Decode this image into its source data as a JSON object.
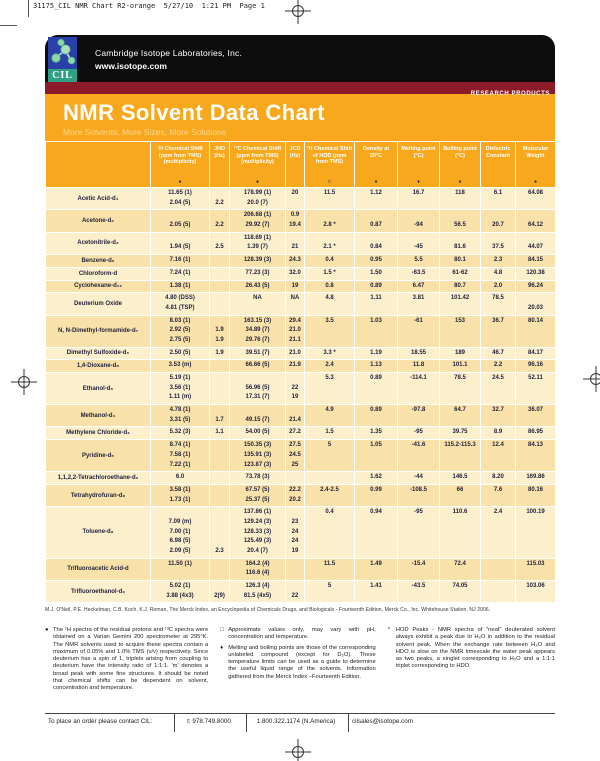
{
  "slug": "31175_CIL NMR Chart R2-orange  5/27/10  1:21 PM  Page 1",
  "brand": {
    "logo_text": "CIL",
    "company": "Cambridge Isotope Laboratories, Inc.",
    "website": "www.isotope.com",
    "banner_right": "RESEARCH PRODUCTS"
  },
  "title": {
    "main": "NMR Solvent Data Chart",
    "subtitle": "More Solvents, More Sizes, More Solutions"
  },
  "table": {
    "columns": [
      {
        "label": "",
        "mark": ""
      },
      {
        "label": "¹H Chemical Shift (ppm from TMS) (multiplicity)",
        "mark": "●"
      },
      {
        "label": "JHD (Hz)",
        "mark": ""
      },
      {
        "label": "¹³C Chemical Shift (ppm from TMS) (multiplicity)",
        "mark": "●"
      },
      {
        "label": "JCD (Hz)",
        "mark": ""
      },
      {
        "label": "¹H Chemical Shift of HOD (ppm from TMS)",
        "mark": "□"
      },
      {
        "label": "Density at 20°C",
        "mark": "♦"
      },
      {
        "label": "Melting point (°C)",
        "mark": "♦"
      },
      {
        "label": "Boiling point (°C)",
        "mark": "♦"
      },
      {
        "label": "Dielectric Constant",
        "mark": ""
      },
      {
        "label": "Molecular Weight",
        "mark": "●"
      }
    ],
    "groups": [
      {
        "name": "Acetic Acid-d₄",
        "lines": [
          [
            "11.65 (1)",
            "",
            "178.99 (1)",
            "20",
            "11.5",
            "1.12",
            "16.7",
            "118",
            "6.1",
            "64.08"
          ],
          [
            "2.04 (5)",
            "2.2",
            "20.0 (7)",
            "",
            "",
            "",
            "",
            "",
            "",
            ""
          ]
        ]
      },
      {
        "name": "Acetone-d₆",
        "lines": [
          [
            "",
            "",
            "206.68 (1)",
            "0.9",
            "",
            "",
            "",
            "",
            "",
            ""
          ],
          [
            "2.05 (5)",
            "2.2",
            "29.92 (7)",
            "19.4",
            "2.8 *",
            "0.87",
            "-94",
            "56.5",
            "20.7",
            "64.12"
          ]
        ]
      },
      {
        "name": "Acetonitrile-d₃",
        "lines": [
          [
            "",
            "",
            "118.69 (1)",
            "",
            "",
            "",
            "",
            "",
            "",
            ""
          ],
          [
            "1.94 (5)",
            "2.5",
            "1.39 (7)",
            "21",
            "2.1 *",
            "0.84",
            "-45",
            "81.6",
            "37.5",
            "44.07"
          ]
        ]
      },
      {
        "name": "Benzene-d₆",
        "lines": [
          [
            "7.16 (1)",
            "",
            "128.39 (3)",
            "24.3",
            "0.4",
            "0.95",
            "5.5",
            "80.1",
            "2.3",
            "84.15"
          ]
        ]
      },
      {
        "name": "Chloroform-d",
        "lines": [
          [
            "7.24 (1)",
            "",
            "77.23 (3)",
            "32.0",
            "1.5 *",
            "1.50",
            "-63.5",
            "61-62",
            "4.8",
            "120.38"
          ]
        ]
      },
      {
        "name": "Cyclohexane-d₁₂",
        "lines": [
          [
            "1.38 (1)",
            "",
            "26.43 (5)",
            "19",
            "0.8",
            "0.89",
            "6.47",
            "80.7",
            "2.0",
            "96.24"
          ]
        ]
      },
      {
        "name": "Deuterium Oxide",
        "lines": [
          [
            "4.80 (DSS)",
            "",
            "NA",
            "NA",
            "4.8",
            "1.11",
            "3.81",
            "101.42",
            "78.5",
            ""
          ],
          [
            "4.81 (TSP)",
            "",
            "",
            "",
            "",
            "",
            "",
            "",
            "",
            "20.03"
          ]
        ]
      },
      {
        "name": "N, N-Dimethyl-formamide-d₇",
        "lines": [
          [
            "8.03 (1)",
            "",
            "163.15 (3)",
            "29.4",
            "3.5",
            "1.03",
            "-61",
            "153",
            "36.7",
            "80.14"
          ],
          [
            "2.92 (5)",
            "1.9",
            "34.89 (7)",
            "21.0",
            "",
            "",
            "",
            "",
            "",
            ""
          ],
          [
            "2.75 (5)",
            "1.9",
            "29.76 (7)",
            "21.1",
            "",
            "",
            "",
            "",
            "",
            ""
          ]
        ]
      },
      {
        "name": "Dimethyl Sulfoxide-d₆",
        "lines": [
          [
            "2.50 (5)",
            "1.9",
            "39.51 (7)",
            "21.0",
            "3.3 *",
            "1.19",
            "18.55",
            "189",
            "46.7",
            "84.17"
          ]
        ]
      },
      {
        "name": "1,4-Dioxane-d₈",
        "lines": [
          [
            "3.53 (m)",
            "",
            "66.66 (5)",
            "21.9",
            "2.4",
            "1.13",
            "11.8",
            "101.1",
            "2.2",
            "96.16"
          ]
        ]
      },
      {
        "name": "Ethanol-d₆",
        "lines": [
          [
            "5.19 (1)",
            "",
            "",
            "",
            "5.3",
            "0.89",
            "-114.1",
            "78.5",
            "24.5",
            "52.11"
          ],
          [
            "3.56 (1)",
            "",
            "56.96 (5)",
            "22",
            "",
            "",
            "",
            "",
            "",
            ""
          ],
          [
            "1.11 (m)",
            "",
            "17.31 (7)",
            "19",
            "",
            "",
            "",
            "",
            "",
            ""
          ]
        ]
      },
      {
        "name": "Methanol-d₄",
        "lines": [
          [
            "4.78 (1)",
            "",
            "",
            "",
            "4.9",
            "0.89",
            "-97.8",
            "64.7",
            "32.7",
            "36.07"
          ],
          [
            "3.31 (5)",
            "1.7",
            "49.15 (7)",
            "21.4",
            "",
            "",
            "",
            "",
            "",
            ""
          ]
        ]
      },
      {
        "name": "Methylene Chloride-d₂",
        "lines": [
          [
            "5.32 (3)",
            "1.1",
            "54.00 (5)",
            "27.2",
            "1.5",
            "1.35",
            "-95",
            "39.75",
            "8.9",
            "86.95"
          ]
        ]
      },
      {
        "name": "Pyridine-d₅",
        "lines": [
          [
            "8.74 (1)",
            "",
            "150.35 (3)",
            "27.5",
            "5",
            "1.05",
            "-41.6",
            "115.2-115.3",
            "12.4",
            "84.13"
          ],
          [
            "7.58 (1)",
            "",
            "135.91 (3)",
            "24.5",
            "",
            "",
            "",
            "",
            "",
            ""
          ],
          [
            "7.22 (1)",
            "",
            "123.87 (3)",
            "25",
            "",
            "",
            "",
            "",
            "",
            ""
          ]
        ]
      },
      {
        "name": "1,1,2,2-Tetrachloroethane-d₂",
        "lines": [
          [
            "6.0",
            "",
            "73.78 (3)",
            "",
            "",
            "1.62",
            "-44",
            "146.5",
            "8.20",
            "169.86"
          ]
        ]
      },
      {
        "name": "Tetrahydrofuran-d₈",
        "lines": [
          [
            "3.58 (1)",
            "",
            "67.57 (5)",
            "22.2",
            "2.4-2.5",
            "0.99",
            "-108.5",
            "66",
            "7.6",
            "80.16"
          ],
          [
            "1.73 (1)",
            "",
            "25.37 (5)",
            "20.2",
            "",
            "",
            "",
            "",
            "",
            ""
          ]
        ]
      },
      {
        "name": "Toluene-d₈",
        "lines": [
          [
            "",
            "",
            "137.86 (1)",
            "",
            "0.4",
            "0.94",
            "-95",
            "110.6",
            "2.4",
            "100.19"
          ],
          [
            "7.09 (m)",
            "",
            "129.24 (3)",
            "23",
            "",
            "",
            "",
            "",
            "",
            ""
          ],
          [
            "7.00 (1)",
            "",
            "128.33 (3)",
            "24",
            "",
            "",
            "",
            "",
            "",
            ""
          ],
          [
            "6.98 (5)",
            "",
            "125.49 (3)",
            "24",
            "",
            "",
            "",
            "",
            "",
            ""
          ],
          [
            "2.09 (5)",
            "2.3",
            "20.4 (7)",
            "19",
            "",
            "",
            "",
            "",
            "",
            ""
          ]
        ]
      },
      {
        "name": "Trifluoroacetic Acid-d",
        "lines": [
          [
            "11.50 (1)",
            "",
            "164.2 (4)",
            "",
            "11.5",
            "1.49",
            "-15.4",
            "72.4",
            "",
            "115.03"
          ],
          [
            "",
            "",
            "116.6 (4)",
            "",
            "",
            "",
            "",
            "",
            "",
            ""
          ]
        ]
      },
      {
        "name": "Trifluoroethanol-d₃",
        "lines": [
          [
            "5.02 (1)",
            "",
            "126.3 (4)",
            "",
            "5",
            "1.41",
            "-43.5",
            "74.05",
            "",
            "103.06"
          ],
          [
            "3.88 (4x3)",
            "2(9)",
            "61.5 (4x5)",
            "22",
            "",
            "",
            "",
            "",
            "",
            ""
          ]
        ]
      }
    ]
  },
  "reference": "M.J. O'Neil, P.E. Heckelman, C.B. Koch, K.J. Roman, The Merck Index, an Encyclopedia of Chemicals Drugs, and Biologicals - Fourteenth Edition, Merck Co., Inc. Whitehouse Station, NJ 2006.",
  "notes": [
    {
      "mark": "●",
      "text": "The ¹H spectra of the residual protons and ¹³C spectra were obtained on a Varian Gemini 200 spectrometer at 295°K. The NMR solvents used to acquire these spectra contain a maximum of 0.05% and 1.0% TMS (v/v) respectively. Since deuterium has a spin of 1, triplets arising from coupling to deuterium have the intensity ratio of 1:1:1. 'm' denotes a broad peak with some fine structures. It should be noted that chemical shifts can be dependent on solvent, concentration and temperature."
    },
    {
      "mark": "□",
      "text": "Approximate values only, may vary with pH, concentration and temperature."
    },
    {
      "mark": "♦",
      "text": "Melting and boiling points are those of the corresponding unlabeled compound (except for D₂O). These temperature limits can be used as a guide to determine the useful liquid range of the solvents. Information gathered from the Merck Index –Fourteenth Edition."
    },
    {
      "mark": "*",
      "text": "HOD Peaks - NMR spectra of \"neat\" deuterated solvent always exhibit a peak due to H₂O in addition to the residual solvent peak. When the exchange rate between H₂O and HDO is slow on the NMR timescale the water peak appears as two peaks, a singlet corresponding to H₂O and a 1:1:1 triplet corresponding to HDO."
    }
  ],
  "contact": {
    "items": [
      "To place an order please contact CIL:",
      "t: 978.749.8000",
      "1.800.322.1174 (N.America)",
      "cilsales@isotope.com"
    ]
  },
  "colors": {
    "orange": "#f7a81c",
    "dark_red": "#8b1b28",
    "row_light": "#fcefcc",
    "row_dark": "#f9e2a9",
    "masthead_black": "#0d0d0d",
    "logo_blue": "#2840a8",
    "logo_teal": "#2f9f86"
  }
}
